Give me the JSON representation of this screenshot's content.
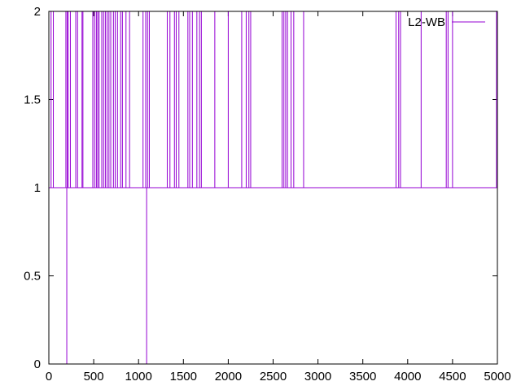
{
  "chart_data": {
    "type": "line",
    "line_style": "steps",
    "xlim": [
      0,
      5000
    ],
    "ylim": [
      0,
      2
    ],
    "x_ticks": [
      0,
      500,
      1000,
      1500,
      2000,
      2500,
      3000,
      3500,
      4000,
      4500,
      5000
    ],
    "y_ticks": [
      0,
      0.5,
      1,
      1.5,
      2
    ],
    "x_tick_labels": [
      "0",
      "500",
      "1000",
      "1500",
      "2000",
      "2500",
      "3000",
      "3500",
      "4000",
      "4500",
      "5000"
    ],
    "y_tick_labels": [
      "0",
      "0.5",
      "1",
      "1.5",
      "2"
    ],
    "grid": false,
    "legend_position": "top-right",
    "series": [
      {
        "name": "L2-WB",
        "color": "#9400d3",
        "baseline": 1,
        "spikes_to_max": [
          25,
          50,
          190,
          205,
          215,
          240,
          300,
          320,
          370,
          380,
          490,
          510,
          530,
          545,
          560,
          590,
          610,
          630,
          650,
          670,
          690,
          720,
          740,
          765,
          800,
          820,
          860,
          900,
          1050,
          1080,
          1100,
          1120,
          1320,
          1350,
          1400,
          1420,
          1450,
          1550,
          1570,
          1600,
          1650,
          1680,
          1700,
          1850,
          2000,
          2150,
          2200,
          2230,
          2250,
          2600,
          2620,
          2640,
          2660,
          2700,
          2730,
          2840,
          3870,
          3900,
          3920,
          4150,
          4430,
          4450,
          4500,
          4990
        ],
        "spikes_to_min": [
          200,
          1090
        ]
      }
    ]
  }
}
